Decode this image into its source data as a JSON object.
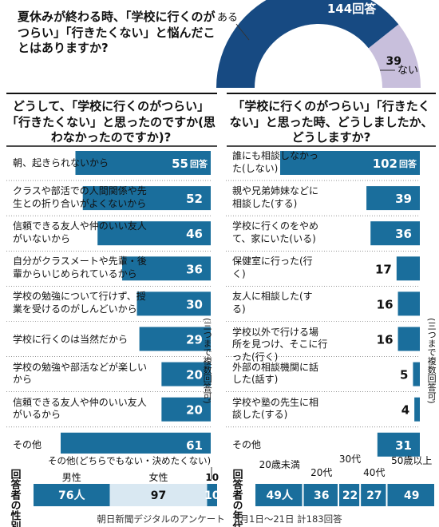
{
  "question": "夏休みが終わる時、「学校に行くのがつらい」「行きたくない」と悩んだことはありますか?",
  "left_heading": "どうして、「学校に行くのがつらい」「行きたくない」と思ったのですか(思わなかったのですか)?",
  "right_heading": "「学校に行くのがつらい」「行きたくない」と思った時、どうしましたか、どうしますか?",
  "multi_answer_note": "(三つまで複数回答可)",
  "unit_suffix": "回答",
  "person_suffix": "人",
  "footer": "朝日新聞デジタルのアンケート　8月1日～21日 計183回答",
  "colors": {
    "bar": "#1a6e9c",
    "gauge_yes": "#174a82",
    "gauge_no": "#c8bfdc",
    "divider": "#111111",
    "gender_female": "#d9e8f2",
    "dashes": "#1a4f7e"
  },
  "chart_data": [
    {
      "type": "pie",
      "variant": "semicircle",
      "title": "夏休みが終わる時、「学校に行くのがつらい」「行きたくない」と悩んだことはありますか?",
      "categories": [
        "ある",
        "ない"
      ],
      "values": [
        144,
        39
      ]
    },
    {
      "type": "bar",
      "orientation": "horizontal",
      "title": "どうして、「学校に行くのがつらい」「行きたくない」と思ったのですか(思わなかったのですか)?",
      "categories": [
        "朝、起きられないから",
        "クラスや部活での人間関係や先生との折り合いがよくないから",
        "信頼できる友人や仲のいい友人がいないから",
        "自分がクラスメートや先輩・後輩からいじめられているから",
        "学校の勉強について行けず、授業を受けるのがしんどいから",
        "学校に行くのは当然だから",
        "学校の勉強や部活などが楽しいから",
        "信頼できる友人や仲のいい友人がいるから",
        "その他"
      ],
      "values": [
        55,
        52,
        46,
        36,
        30,
        29,
        20,
        20,
        61
      ]
    },
    {
      "type": "bar",
      "orientation": "horizontal",
      "title": "「学校に行くのがつらい」「行きたくない」と思った時、どうしましたか、どうしますか?",
      "categories": [
        "誰にも相談しなかった(しない)",
        "親や兄弟姉妹などに相談した(する)",
        "学校に行くのをやめて、家にいた(いる)",
        "保健室に行った(行く)",
        "友人に相談した(する)",
        "学校以外で行ける場所を見つけ、そこに行った(行く)",
        "外部の相談機関に話した(話す)",
        "学校や塾の先生に相談した(する)",
        "その他"
      ],
      "values": [
        102,
        39,
        36,
        17,
        16,
        16,
        5,
        4,
        31
      ]
    },
    {
      "type": "bar",
      "variant": "stacked-100",
      "title": "回答者の性別",
      "categories": [
        "男性",
        "女性",
        "その他(どちらでもない・決めたくない)"
      ],
      "values": [
        76,
        97,
        10
      ]
    },
    {
      "type": "bar",
      "variant": "stacked-100",
      "title": "回答者の年代",
      "categories": [
        "20歳未満",
        "20代",
        "30代",
        "40代",
        "50歳以上"
      ],
      "values": [
        49,
        36,
        22,
        27,
        49
      ]
    }
  ],
  "gender_other_label": "その他(どちらでもない・決めたくない)",
  "gender_title": "回答者の性別",
  "age_title": "回答者の年代"
}
